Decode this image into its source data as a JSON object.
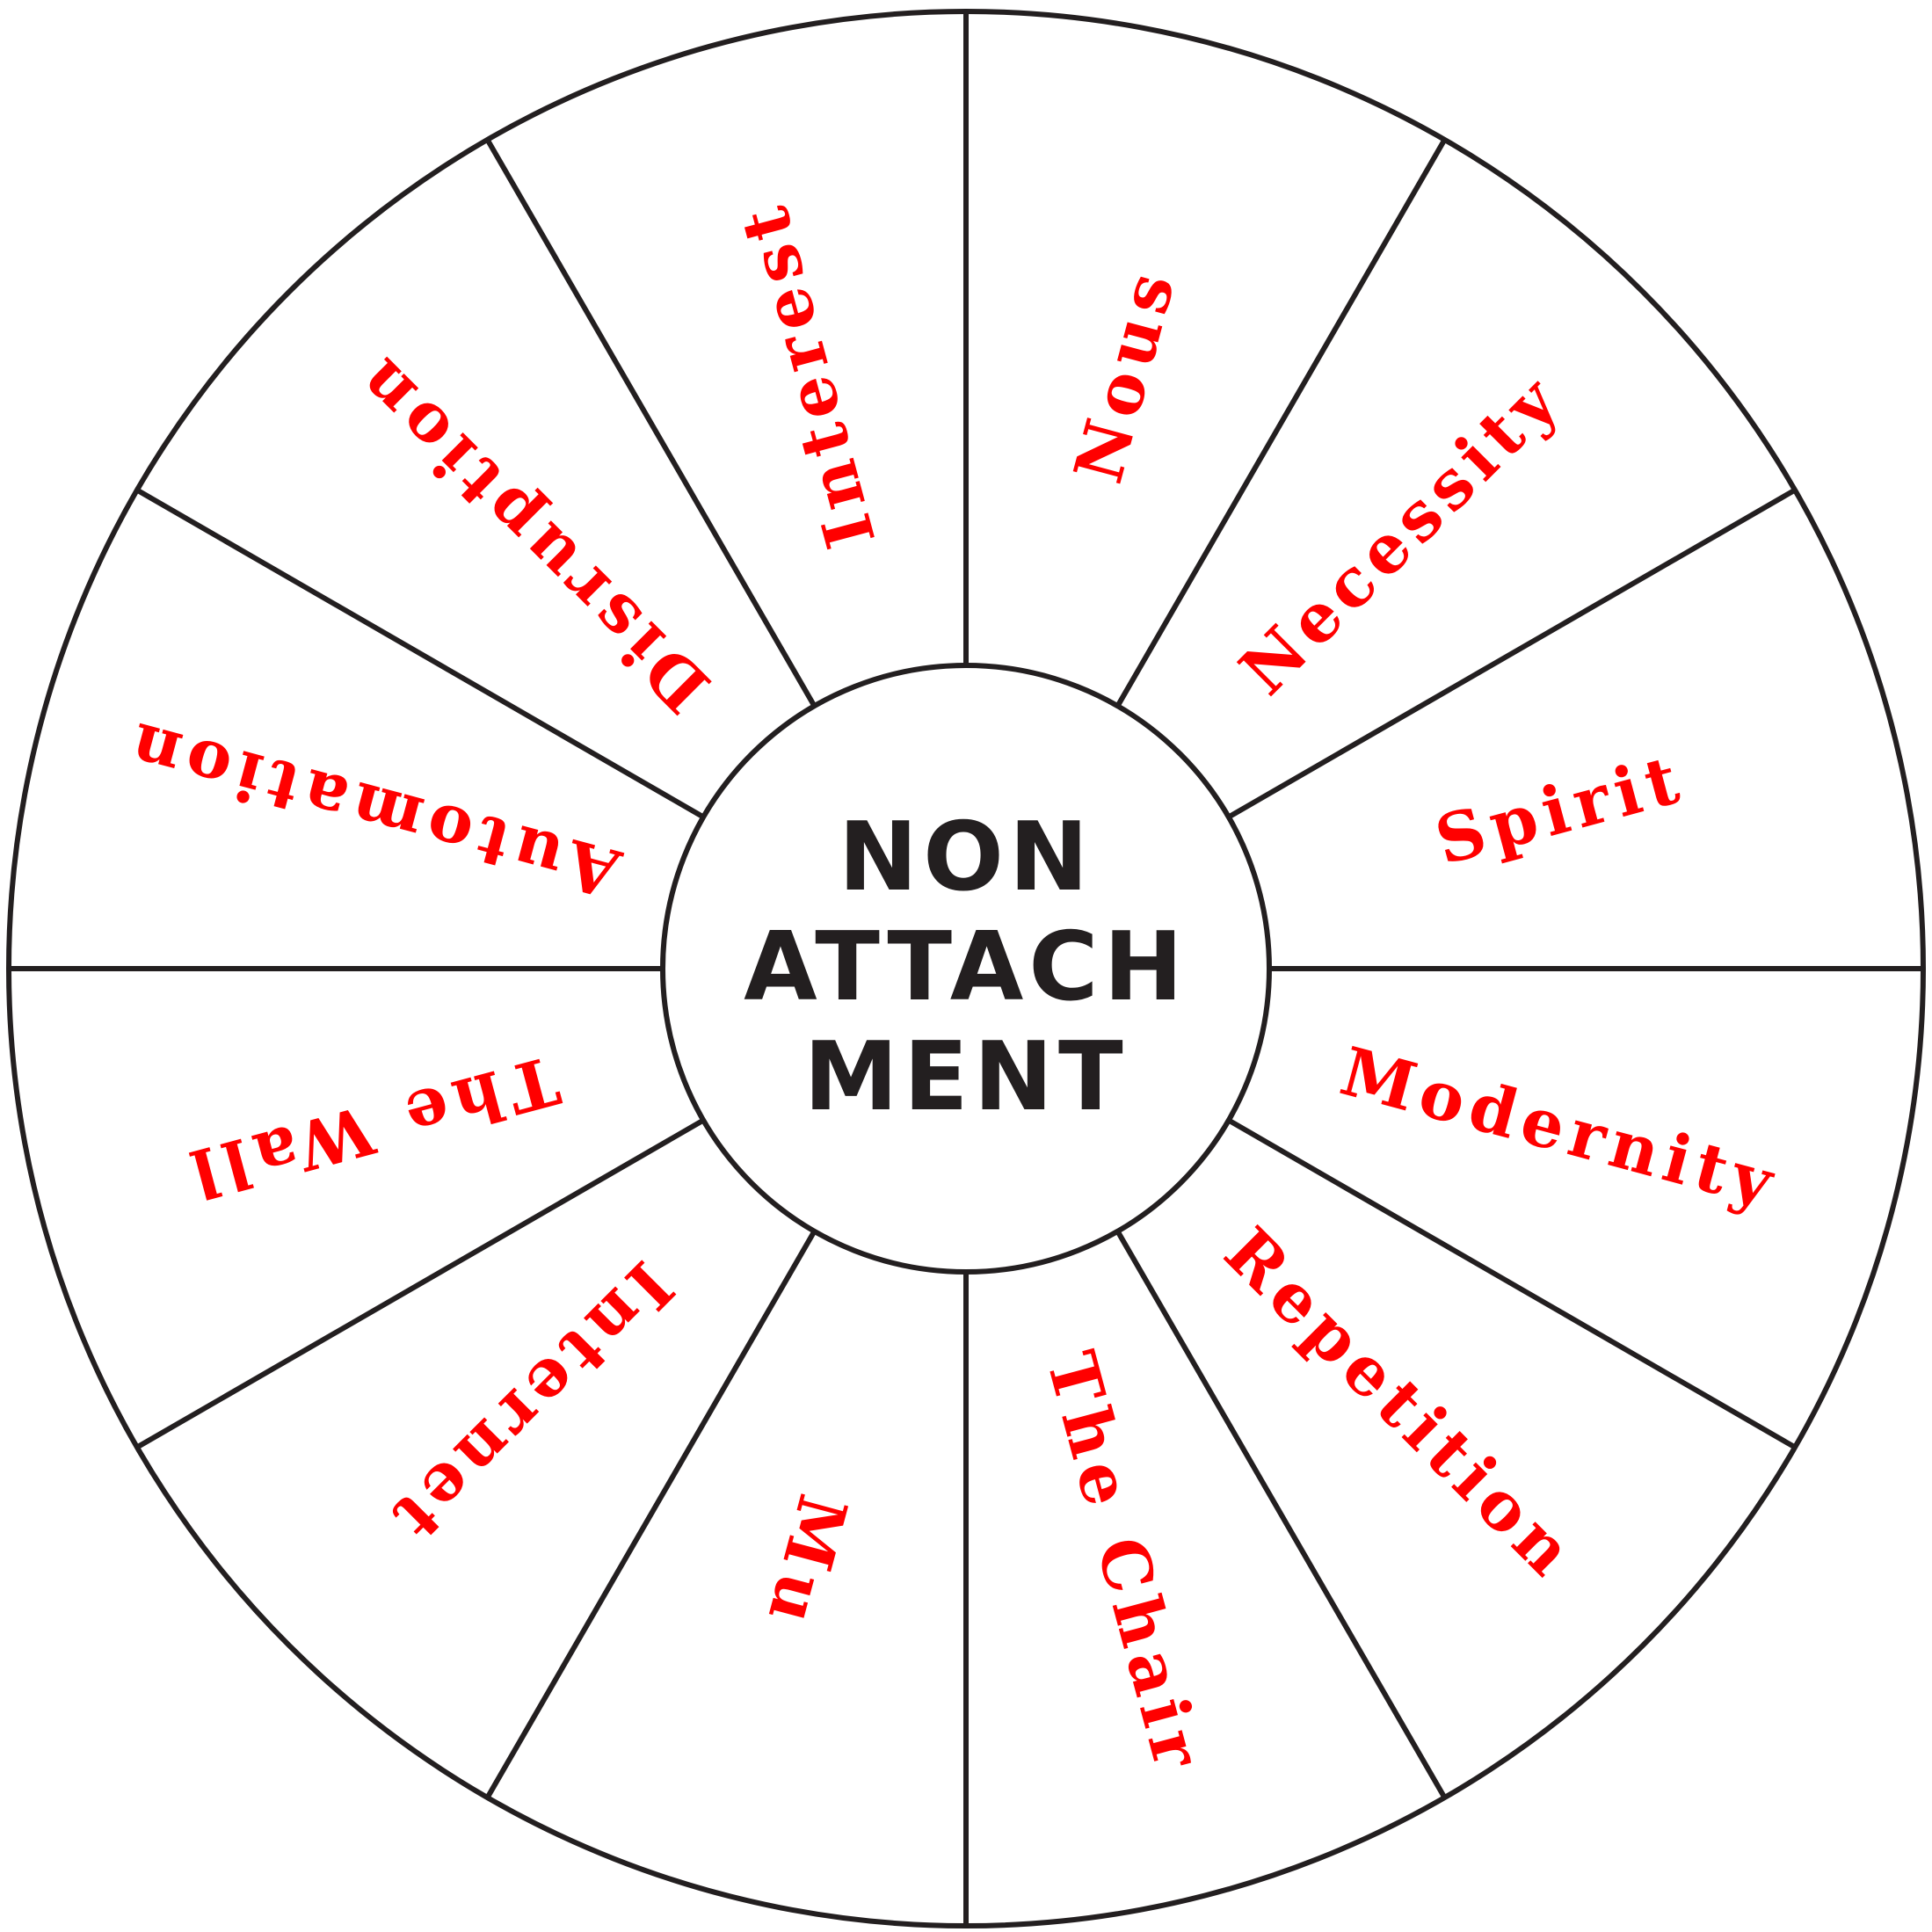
{
  "center": {
    "lines": [
      "NON",
      "ATTACH",
      "MENT"
    ]
  },
  "segments": [
    {
      "label": "Nous"
    },
    {
      "label": "Necessity"
    },
    {
      "label": "Spirit"
    },
    {
      "label": "Modernity"
    },
    {
      "label": "Repetition"
    },
    {
      "label": "The Chair"
    },
    {
      "label": "Mu"
    },
    {
      "label": "Internet"
    },
    {
      "label": "The Wall"
    },
    {
      "label": "Automation"
    },
    {
      "label": "Disruption"
    },
    {
      "label": "Interest"
    }
  ],
  "colors": {
    "label": "#ff0000",
    "center_text": "#231f20",
    "lines": "#231f20",
    "background": "#ffffff"
  }
}
